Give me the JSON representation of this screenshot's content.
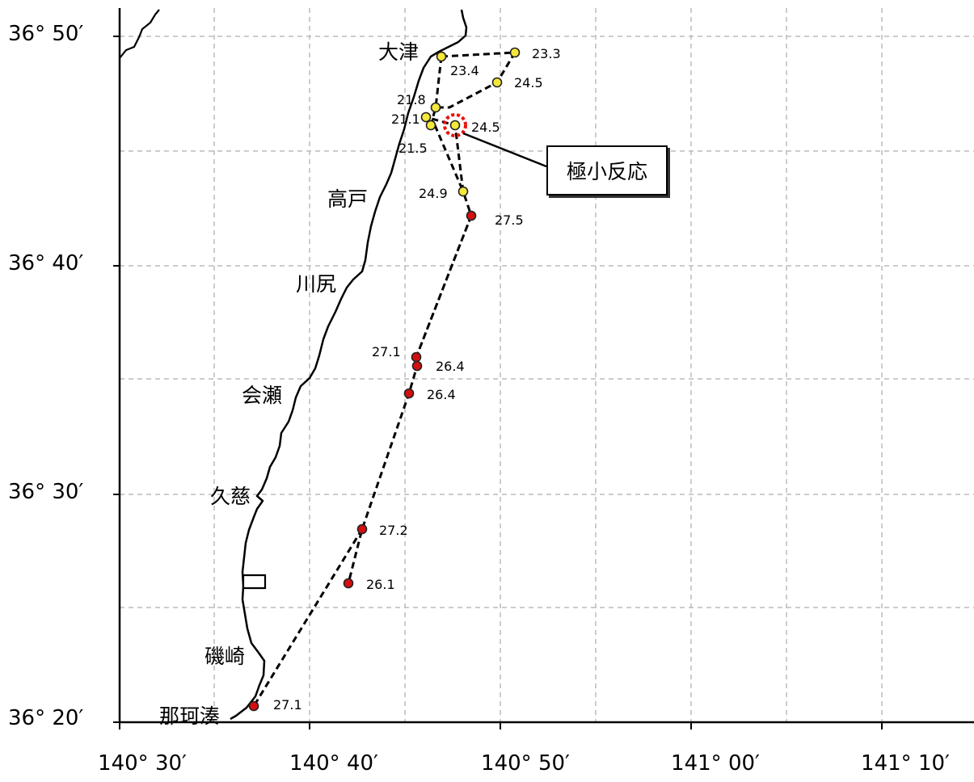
{
  "lat_labels": [
    "36° 50′",
    "36° 40′",
    "36° 30′",
    "36° 20′"
  ],
  "lon_labels": [
    "140° 30′",
    "140° 40′",
    "140° 50′",
    "141° 00′",
    "141° 10′"
  ],
  "places": [
    "大津",
    "高戸",
    "川尻",
    "会瀬",
    "久慈",
    "磯崎",
    "那珂湊"
  ],
  "callout_label": "極小反応",
  "stations": [
    {
      "value": "23.4",
      "level": "yellow"
    },
    {
      "value": "23.3",
      "level": "yellow"
    },
    {
      "value": "24.5",
      "level": "yellow"
    },
    {
      "value": "21.8",
      "level": "yellow"
    },
    {
      "value": "21.1",
      "level": "yellow"
    },
    {
      "value": "21.5",
      "level": "yellow"
    },
    {
      "value": "24.5",
      "level": "yellow"
    },
    {
      "value": "24.9",
      "level": "yellow"
    },
    {
      "value": "27.5",
      "level": "red"
    },
    {
      "value": "27.1",
      "level": "red"
    },
    {
      "value": "26.4",
      "level": "red"
    },
    {
      "value": "26.4",
      "level": "red"
    },
    {
      "value": "27.2",
      "level": "red"
    },
    {
      "value": "26.1",
      "level": "red"
    },
    {
      "value": "27.1",
      "level": "red"
    }
  ],
  "colors": {
    "yellow": "#f5e83a",
    "red": "#d40f0f",
    "highlight": "#e8140c",
    "grid": "#bbbbbb"
  }
}
